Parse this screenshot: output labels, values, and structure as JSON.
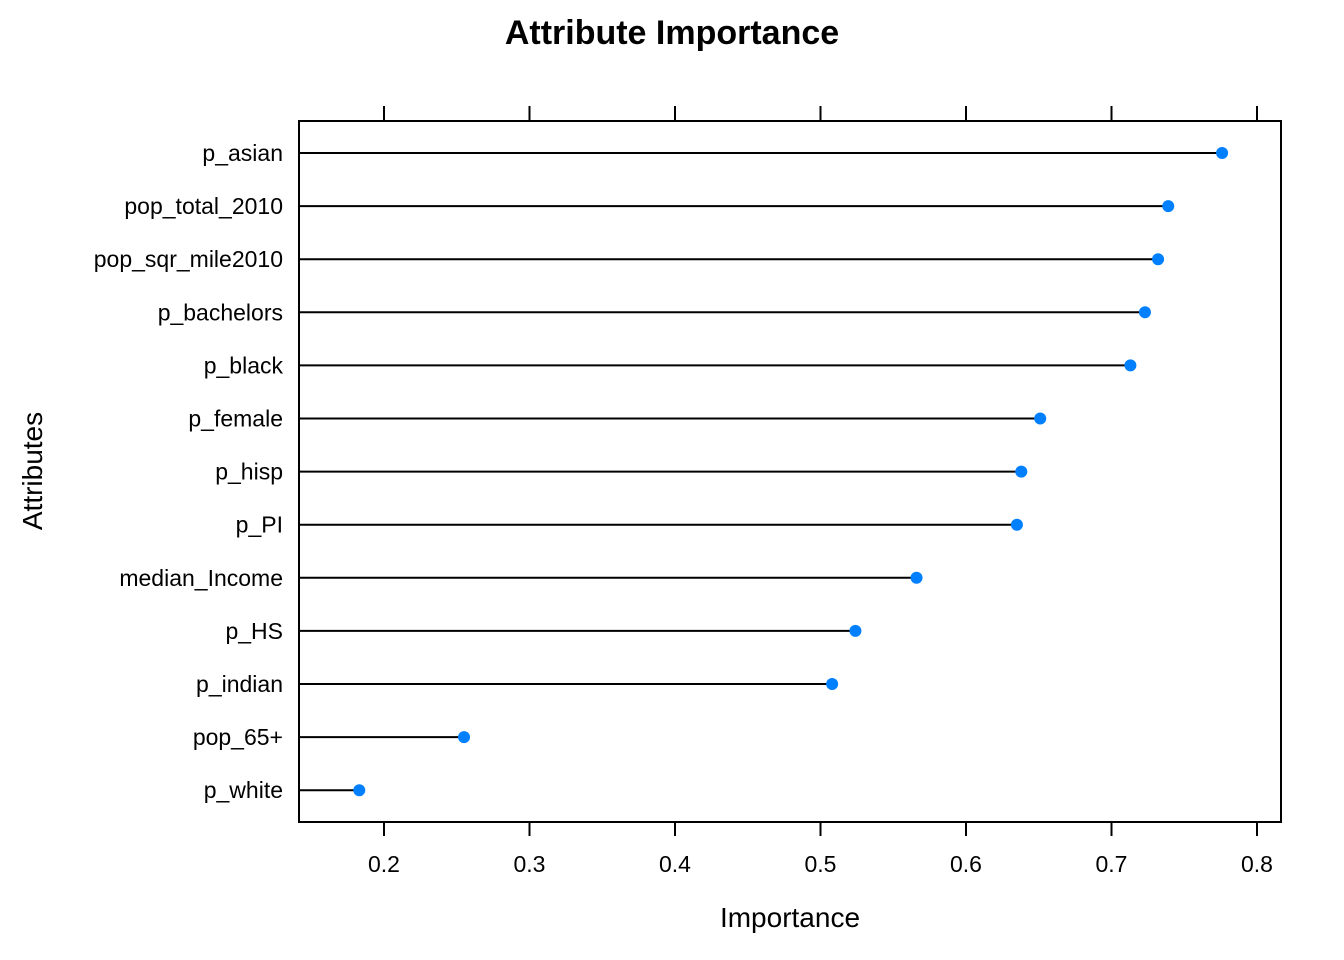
{
  "chart_data": {
    "type": "dot",
    "title": "Attribute Importance",
    "xlabel": "Importance",
    "ylabel": "Attributes",
    "xlim": [
      0.14,
      0.82
    ],
    "xticks": [
      "0.2",
      "0.3",
      "0.4",
      "0.5",
      "0.6",
      "0.7",
      "0.8"
    ],
    "grid": false,
    "legend": "none",
    "categories": [
      "p_asian",
      "pop_total_2010",
      "pop_sqr_mile2010",
      "p_bachelors",
      "p_black",
      "p_female",
      "p_hisp",
      "p_PI",
      "median_Income",
      "p_HS",
      "p_indian",
      "pop_65+",
      "p_white"
    ],
    "values": [
      0.776,
      0.739,
      0.732,
      0.723,
      0.713,
      0.651,
      0.638,
      0.635,
      0.566,
      0.524,
      0.508,
      0.255,
      0.183
    ],
    "point_color": "#0080FF",
    "line_color": "#000000"
  }
}
